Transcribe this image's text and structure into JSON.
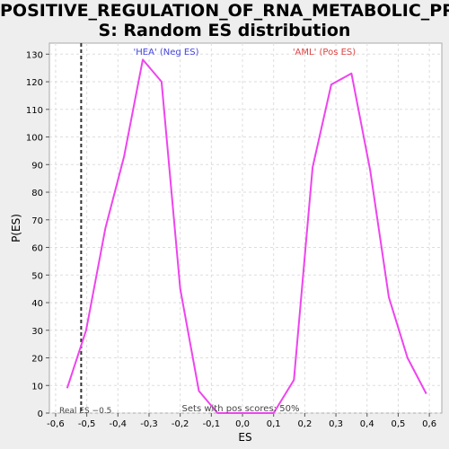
{
  "chart_data": {
    "type": "line",
    "title_line1": "POSITIVE_REGULATION_OF_RNA_METABOLIC_PROCES",
    "title_line2": "S: Random ES distribution",
    "xlabel": "ES",
    "ylabel": "P(ES)",
    "xlim": [
      -0.62,
      0.64
    ],
    "ylim": [
      0,
      134
    ],
    "xticks": [
      -0.6,
      -0.5,
      -0.4,
      -0.3,
      -0.2,
      -0.1,
      0.0,
      0.1,
      0.2,
      0.3,
      0.4,
      0.5,
      0.6
    ],
    "xtick_labels": [
      "-0,6",
      "-0,5",
      "-0,4",
      "-0,3",
      "-0,2",
      "-0,1",
      "0,0",
      "0,1",
      "0,2",
      "0,3",
      "0,4",
      "0,5",
      "0,6"
    ],
    "yticks": [
      0,
      10,
      20,
      30,
      40,
      50,
      60,
      70,
      80,
      90,
      100,
      110,
      120,
      130
    ],
    "ytick_labels": [
      "0",
      "10",
      "20",
      "30",
      "40",
      "50",
      "60",
      "70",
      "80",
      "90",
      "100",
      "110",
      "120",
      "130"
    ],
    "grid": true,
    "series": [
      {
        "color": "#ee44ee",
        "x": [
          -0.563,
          -0.502,
          -0.44,
          -0.38,
          -0.32,
          -0.26,
          -0.2,
          -0.14,
          -0.08,
          -0.02,
          0.04,
          0.1,
          0.165,
          0.225,
          0.285,
          0.35,
          0.41,
          0.47,
          0.53,
          0.59
        ],
        "y": [
          9,
          30,
          67,
          93,
          128,
          120,
          45,
          8,
          0,
          0,
          0,
          0,
          12,
          89,
          119,
          123,
          88,
          42,
          20,
          7
        ]
      }
    ],
    "real_es": -0.518,
    "annotations": {
      "neg_label": "'HEA' (Neg ES)",
      "pos_label": "'AML' (Pos ES)",
      "real_es_label": "Real ES −0.5",
      "pos_scores_label": "Sets with pos scores: 50%"
    },
    "colors": {
      "neg_label": "#4444dd",
      "pos_label": "#dd4444",
      "line": "#ee44ee",
      "real_es_line": "#333333"
    }
  }
}
